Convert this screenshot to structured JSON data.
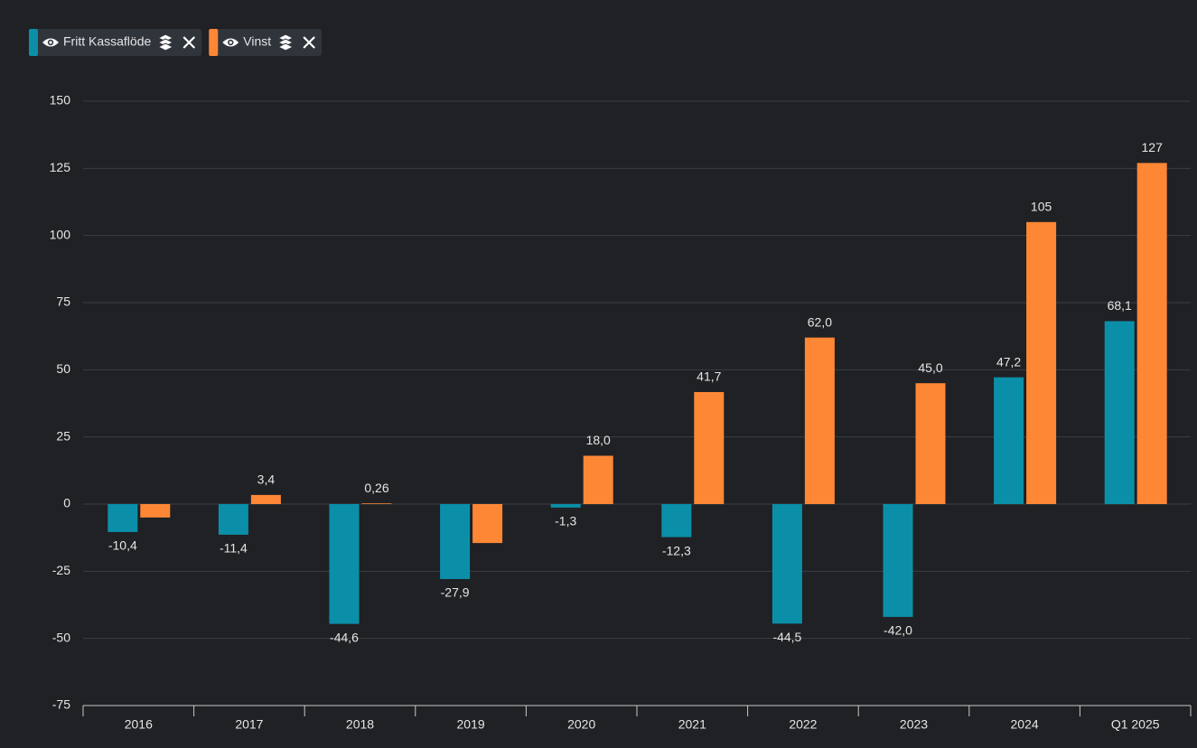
{
  "chart_data": {
    "type": "bar",
    "categories": [
      "2016",
      "2017",
      "2018",
      "2019",
      "2020",
      "2021",
      "2022",
      "2023",
      "2024",
      "Q1 2025"
    ],
    "series": [
      {
        "name": "Fritt Kassaflöde",
        "color": "#0b8fa9",
        "values": [
          -10.4,
          -11.4,
          -44.6,
          -27.9,
          -1.3,
          -12.3,
          -44.5,
          -42.0,
          47.2,
          68.1
        ],
        "value_labels": [
          "-10,4",
          "-11,4",
          "-44,6",
          "-27,9",
          "-1,3",
          "-12,3",
          "-44,5",
          "-42,0",
          "47,2",
          "68,1"
        ]
      },
      {
        "name": "Vinst",
        "color": "#fe8736",
        "values": [
          -5,
          3.4,
          0.26,
          -14.5,
          18.0,
          41.7,
          62.0,
          45.0,
          105,
          127
        ],
        "value_labels": [
          null,
          "3,4",
          "0,26",
          null,
          "18,0",
          "41,7",
          "62,0",
          "45,0",
          "105",
          "127"
        ]
      }
    ],
    "ylim": [
      -75,
      150
    ],
    "yticks": [
      -75,
      -50,
      -25,
      0,
      25,
      50,
      75,
      100,
      125,
      150
    ],
    "grid": true
  }
}
